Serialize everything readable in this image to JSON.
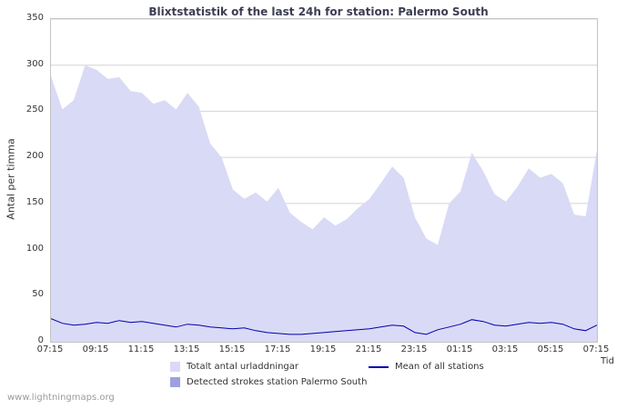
{
  "watermark": "www.lightningmaps.org",
  "chart_data": {
    "type": "area",
    "title": "Blixtstatistik of the last 24h for station: Palermo South",
    "xlabel": "Tid",
    "ylabel": "Antal per timma",
    "ylim": [
      0,
      350
    ],
    "yticks": [
      0,
      50,
      100,
      150,
      200,
      250,
      300,
      350
    ],
    "xticks": [
      "07:15",
      "09:15",
      "11:15",
      "13:15",
      "15:15",
      "17:15",
      "19:15",
      "21:15",
      "23:15",
      "01:15",
      "03:15",
      "05:15",
      "07:15"
    ],
    "grid": true,
    "legend_position": "bottom",
    "colors": {
      "grid": "#d4d4d4",
      "axis_border": "#c4c4c4",
      "total_area": "#d9daf6",
      "detected_area": "#9e9fe0",
      "mean_line": "#0000aa"
    },
    "series": [
      {
        "name": "Totalt antal urladdningar",
        "type": "area",
        "color": "#d9daf6",
        "values": [
          288,
          252,
          262,
          300,
          295,
          285,
          287,
          272,
          270,
          258,
          262,
          252,
          270,
          255,
          215,
          200,
          165,
          155,
          162,
          152,
          167,
          140,
          130,
          122,
          135,
          126,
          133,
          145,
          155,
          172,
          190,
          178,
          135,
          112,
          105,
          150,
          163,
          205,
          185,
          160,
          152,
          168,
          188,
          178,
          182,
          172,
          138,
          136,
          208
        ]
      },
      {
        "name": "Detected strokes station Palermo South",
        "type": "area",
        "color": "#9e9fe0",
        "values": [
          0,
          0,
          0,
          0,
          0,
          0,
          0,
          0,
          0,
          0,
          0,
          0,
          0,
          0,
          0,
          0,
          0,
          0,
          0,
          0,
          0,
          0,
          0,
          0,
          0,
          0,
          0,
          0,
          0,
          0,
          0,
          0,
          0,
          0,
          0,
          0,
          0,
          0,
          0,
          0,
          0,
          0,
          0,
          0,
          0,
          0,
          0,
          0,
          0
        ]
      },
      {
        "name": "Mean of all stations",
        "type": "line",
        "color": "#0000aa",
        "values": [
          25,
          20,
          18,
          19,
          21,
          20,
          23,
          21,
          22,
          20,
          18,
          16,
          19,
          18,
          16,
          15,
          14,
          15,
          12,
          10,
          9,
          8,
          8,
          9,
          10,
          11,
          12,
          13,
          14,
          16,
          18,
          17,
          10,
          8,
          13,
          16,
          19,
          24,
          22,
          18,
          17,
          19,
          21,
          20,
          21,
          19,
          14,
          12,
          18
        ]
      }
    ]
  }
}
